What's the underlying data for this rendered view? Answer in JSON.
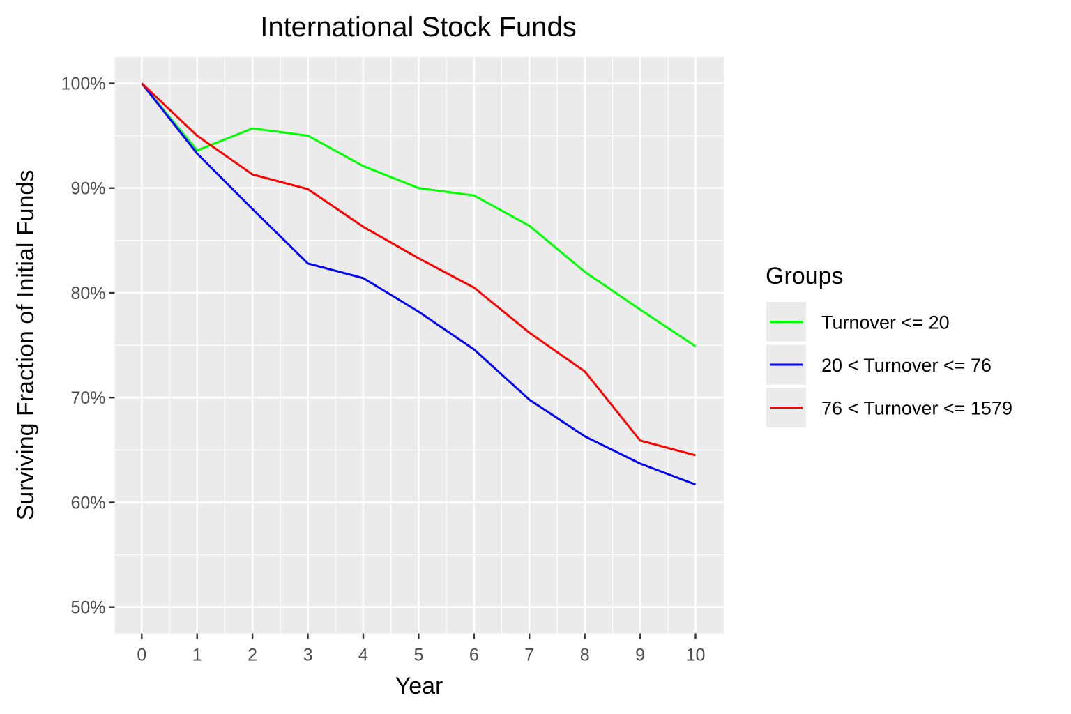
{
  "chart_data": {
    "type": "line",
    "title": "International Stock Funds",
    "xlabel": "Year",
    "ylabel": "Surviving Fraction of Initial Funds",
    "x": [
      0,
      1,
      2,
      3,
      4,
      5,
      6,
      7,
      8,
      9,
      10
    ],
    "xticks": [
      "0",
      "1",
      "2",
      "3",
      "4",
      "5",
      "6",
      "7",
      "8",
      "9",
      "10"
    ],
    "yticks": [
      "50%",
      "60%",
      "70%",
      "80%",
      "90%",
      "100%"
    ],
    "ylim": [
      0.475,
      1.025
    ],
    "xlim": [
      -0.5,
      10.5
    ],
    "grid": true,
    "legend_title": "Groups",
    "legend_position": "right",
    "series": [
      {
        "name": "Turnover <= 20",
        "color": "#00ff00",
        "values": [
          1.0,
          0.936,
          0.957,
          0.95,
          0.921,
          0.9,
          0.893,
          0.864,
          0.82,
          0.784,
          0.749
        ]
      },
      {
        "name": "20 < Turnover <= 76",
        "color": "#0000ff",
        "values": [
          1.0,
          0.933,
          0.88,
          0.828,
          0.814,
          0.782,
          0.746,
          0.698,
          0.663,
          0.637,
          0.617
        ]
      },
      {
        "name": "76 < Turnover <= 1579",
        "color": "#ff0000",
        "values": [
          1.0,
          0.95,
          0.913,
          0.899,
          0.863,
          0.833,
          0.805,
          0.762,
          0.725,
          0.659,
          0.645
        ]
      }
    ]
  }
}
